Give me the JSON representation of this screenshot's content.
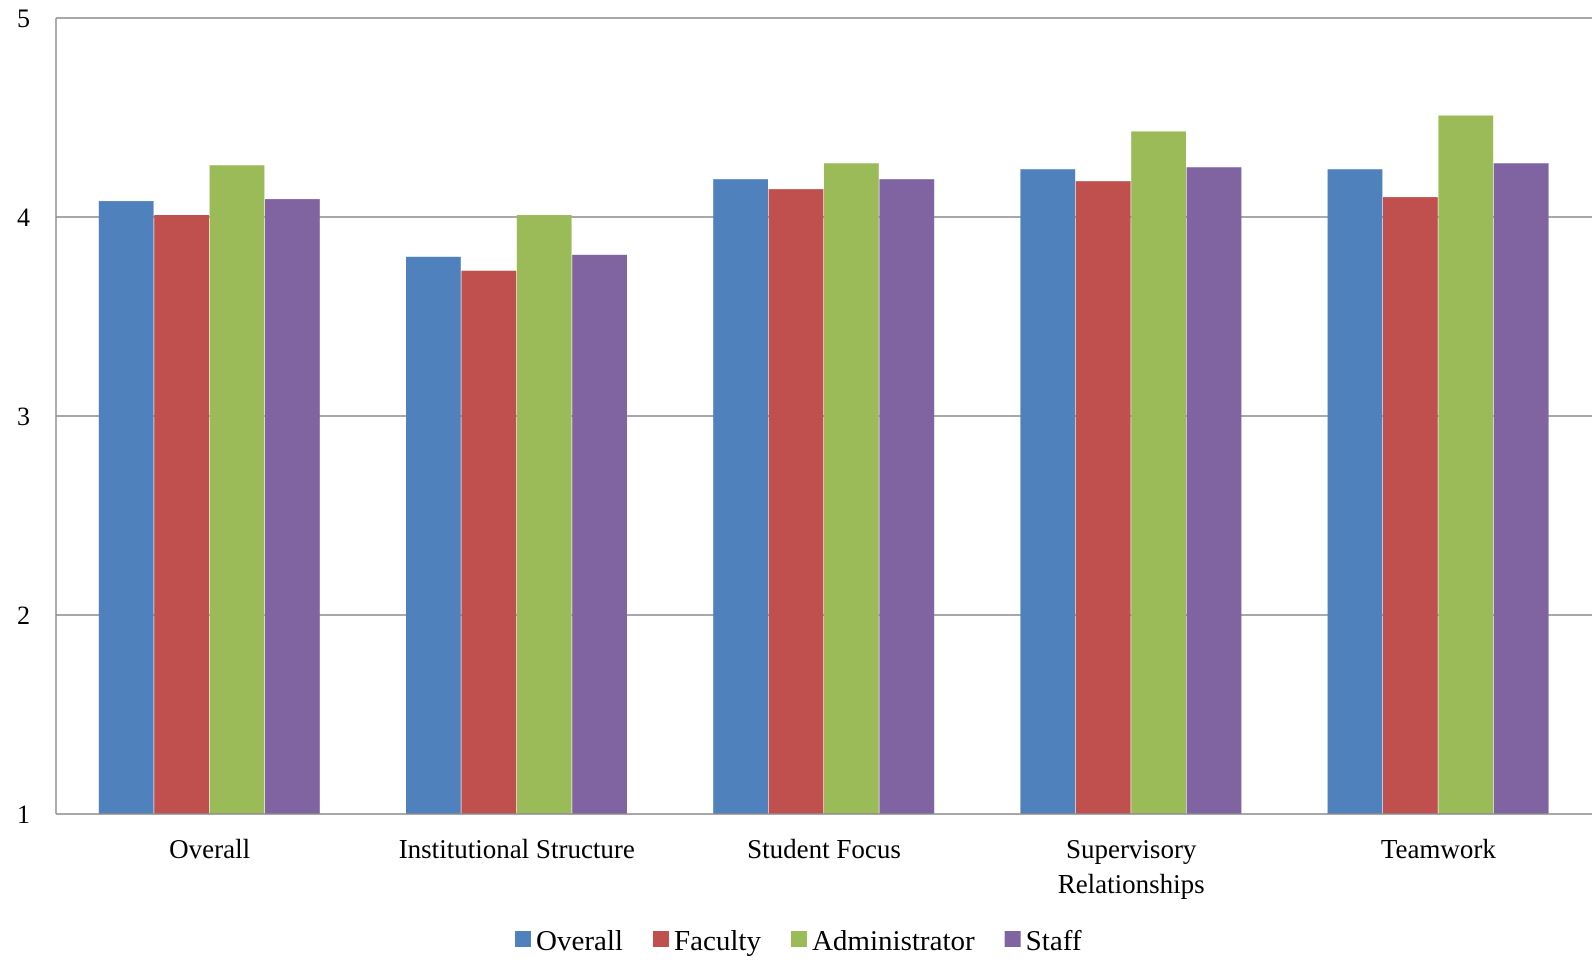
{
  "chart_data": {
    "type": "bar",
    "title": "",
    "xlabel": "",
    "ylabel": "",
    "ylim": [
      1,
      5
    ],
    "yticks": [
      1,
      2,
      3,
      4,
      5
    ],
    "grid": true,
    "legend_position": "bottom",
    "categories": [
      [
        "Overall"
      ],
      [
        "Institutional Structure"
      ],
      [
        "Student Focus"
      ],
      [
        "Supervisory",
        "Relationships"
      ],
      [
        "Teamwork"
      ]
    ],
    "series": [
      {
        "name": "Overall",
        "color": "#4F81BD",
        "values": [
          4.08,
          3.8,
          4.19,
          4.24,
          4.24
        ]
      },
      {
        "name": "Faculty",
        "color": "#C0504D",
        "values": [
          4.01,
          3.73,
          4.14,
          4.18,
          4.1
        ]
      },
      {
        "name": "Administrator",
        "color": "#9BBB59",
        "values": [
          4.26,
          4.01,
          4.27,
          4.43,
          4.51
        ]
      },
      {
        "name": "Staff",
        "color": "#8064A2",
        "values": [
          4.09,
          3.81,
          4.19,
          4.25,
          4.27
        ]
      }
    ]
  }
}
